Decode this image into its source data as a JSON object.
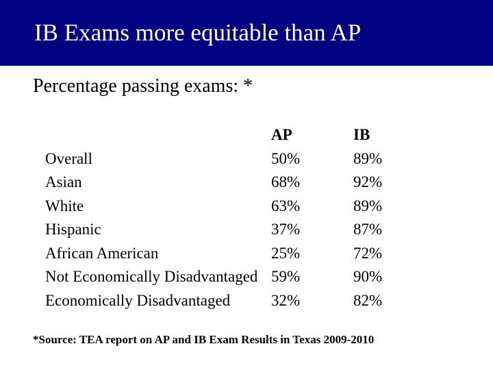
{
  "title": "IB Exams more equitable than AP",
  "subtitle": "Percentage passing exams: *",
  "table": {
    "headers": {
      "col1": "",
      "col2": "AP",
      "col3": "IB"
    },
    "rows": [
      {
        "label": "Overall",
        "ap": "50%",
        "ib": "89%"
      },
      {
        "label": "Asian",
        "ap": "68%",
        "ib": "92%"
      },
      {
        "label": "White",
        "ap": "63%",
        "ib": "89%"
      },
      {
        "label": "Hispanic",
        "ap": "37%",
        "ib": "87%"
      },
      {
        "label": "African American",
        "ap": "25%",
        "ib": "72%"
      },
      {
        "label": "Not Economically Disadvantaged",
        "ap": "59%",
        "ib": "90%"
      },
      {
        "label": "Economically Disadvantaged",
        "ap": "32%",
        "ib": "82%"
      }
    ]
  },
  "footnote": "*Source: TEA report on AP and IB Exam Results in Texas 2009-2010",
  "colors": {
    "title_bg": "#000080",
    "title_text": "#ffffff",
    "body_bg": "#ffffff",
    "body_text": "#000000"
  }
}
